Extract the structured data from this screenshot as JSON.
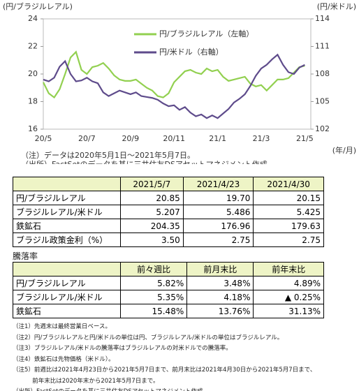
{
  "chart_data": {
    "type": "line",
    "y_label": "(円/ブラジルレアル)",
    "y2_label": "(円/米ドル)",
    "x_unit": "(年/月)",
    "categories": [
      "20/5",
      null,
      null,
      null,
      null,
      null,
      null,
      null,
      "20/7",
      null,
      null,
      null,
      null,
      null,
      null,
      null,
      "20/9",
      null,
      null,
      null,
      null,
      null,
      null,
      null,
      "20/11",
      null,
      null,
      null,
      null,
      null,
      null,
      null,
      "21/1",
      null,
      null,
      null,
      null,
      null,
      null,
      null,
      "21/3",
      null,
      null,
      null,
      null,
      null,
      null,
      null,
      "21/5"
    ],
    "series": [
      {
        "name": "円/ブラジルレアル（左軸）",
        "color": "#92d050",
        "values": [
          19.4,
          18.6,
          18.3,
          18.9,
          20.0,
          21.2,
          21.6,
          20.3,
          20.0,
          20.5,
          20.6,
          20.8,
          20.4,
          19.9,
          19.6,
          19.5,
          19.5,
          19.6,
          19.3,
          19.0,
          18.8,
          18.4,
          18.3,
          18.6,
          19.4,
          19.8,
          20.2,
          20.3,
          20.1,
          20.0,
          20.4,
          20.2,
          20.3,
          19.8,
          19.5,
          19.6,
          19.7,
          19.8,
          19.3,
          19.1,
          19.2,
          18.8,
          19.2,
          19.6,
          19.6,
          19.7,
          20.1,
          20.5,
          20.6
        ]
      },
      {
        "name": "円/米ドル（右軸）",
        "color": "#5e4b8b",
        "axis": "y2",
        "values": [
          107.4,
          107.2,
          107.6,
          108.8,
          109.4,
          108.0,
          107.2,
          107.3,
          107.6,
          107.2,
          107.0,
          106.0,
          105.6,
          105.9,
          106.2,
          106.0,
          105.8,
          106.0,
          105.6,
          105.5,
          105.4,
          105.2,
          104.8,
          104.5,
          104.6,
          104.1,
          104.4,
          103.8,
          103.4,
          103.6,
          103.2,
          103.5,
          103.2,
          103.7,
          104.2,
          104.9,
          105.3,
          105.8,
          106.7,
          107.8,
          108.6,
          109.0,
          109.6,
          110.1,
          109.0,
          108.2,
          108.0,
          108.7,
          109.0
        ]
      }
    ],
    "ylim": [
      16,
      24
    ],
    "yticks": [
      16,
      18,
      20,
      22,
      24
    ],
    "y2lim": [
      102,
      114
    ],
    "y2ticks": [
      102,
      105,
      108,
      111,
      114
    ],
    "grid": false,
    "notes": [
      "（注）データは2020年5月1日～2021年5月7日。",
      "（出所）FactSetのデータを基に三井住友DSアセットマネジメント作成"
    ]
  },
  "table1": {
    "header": [
      "2021/5/7",
      "2021/4/23",
      "2021/4/30"
    ],
    "rows": [
      [
        "円/ブラジルレアル",
        "20.85",
        "19.70",
        "20.15"
      ],
      [
        "ブラジルレアル/米ドル",
        "5.207",
        "5.486",
        "5.425"
      ],
      [
        "鉄鉱石",
        "204.35",
        "176.96",
        "179.63"
      ],
      [
        "ブラジル政策金利（%）",
        "3.50",
        "2.75",
        "2.75"
      ]
    ]
  },
  "table2_title": "騰落率",
  "table2": {
    "header": [
      "前々週比",
      "前月末比",
      "前年末比"
    ],
    "rows": [
      [
        "円/ブラジルレアル",
        "5.82%",
        "3.48%",
        "4.89%"
      ],
      [
        "ブラジルレアル/米ドル",
        "5.35%",
        "4.18%",
        "▲ 0.25%"
      ],
      [
        "鉄鉱石",
        "15.48%",
        "13.76%",
        "31.13%"
      ]
    ]
  },
  "notes": [
    "（注1）先週末は最終営業日ベース。",
    "（注2）円/ブラジルレアルと円/米ドルの単位は円、ブラジルレアル/米ドルの単位はブラジルレアル。",
    "（注3）ブラジルレアル/米ドルの騰落率はブラジルレアルの対米ドルでの騰落率。",
    "（注4）鉄鉱石は先物価格（米ドル）。",
    "（注5）前週比は2021年4月23日から2021年5月7日まで、前月末比は2021年4月30日から2021年5月7日まで、",
    "　　　 前年末比は2020年末から2021年5月7日まで。",
    "（出所）FactSetのデータを基に三井住友DSアセットマネジメント作成"
  ]
}
